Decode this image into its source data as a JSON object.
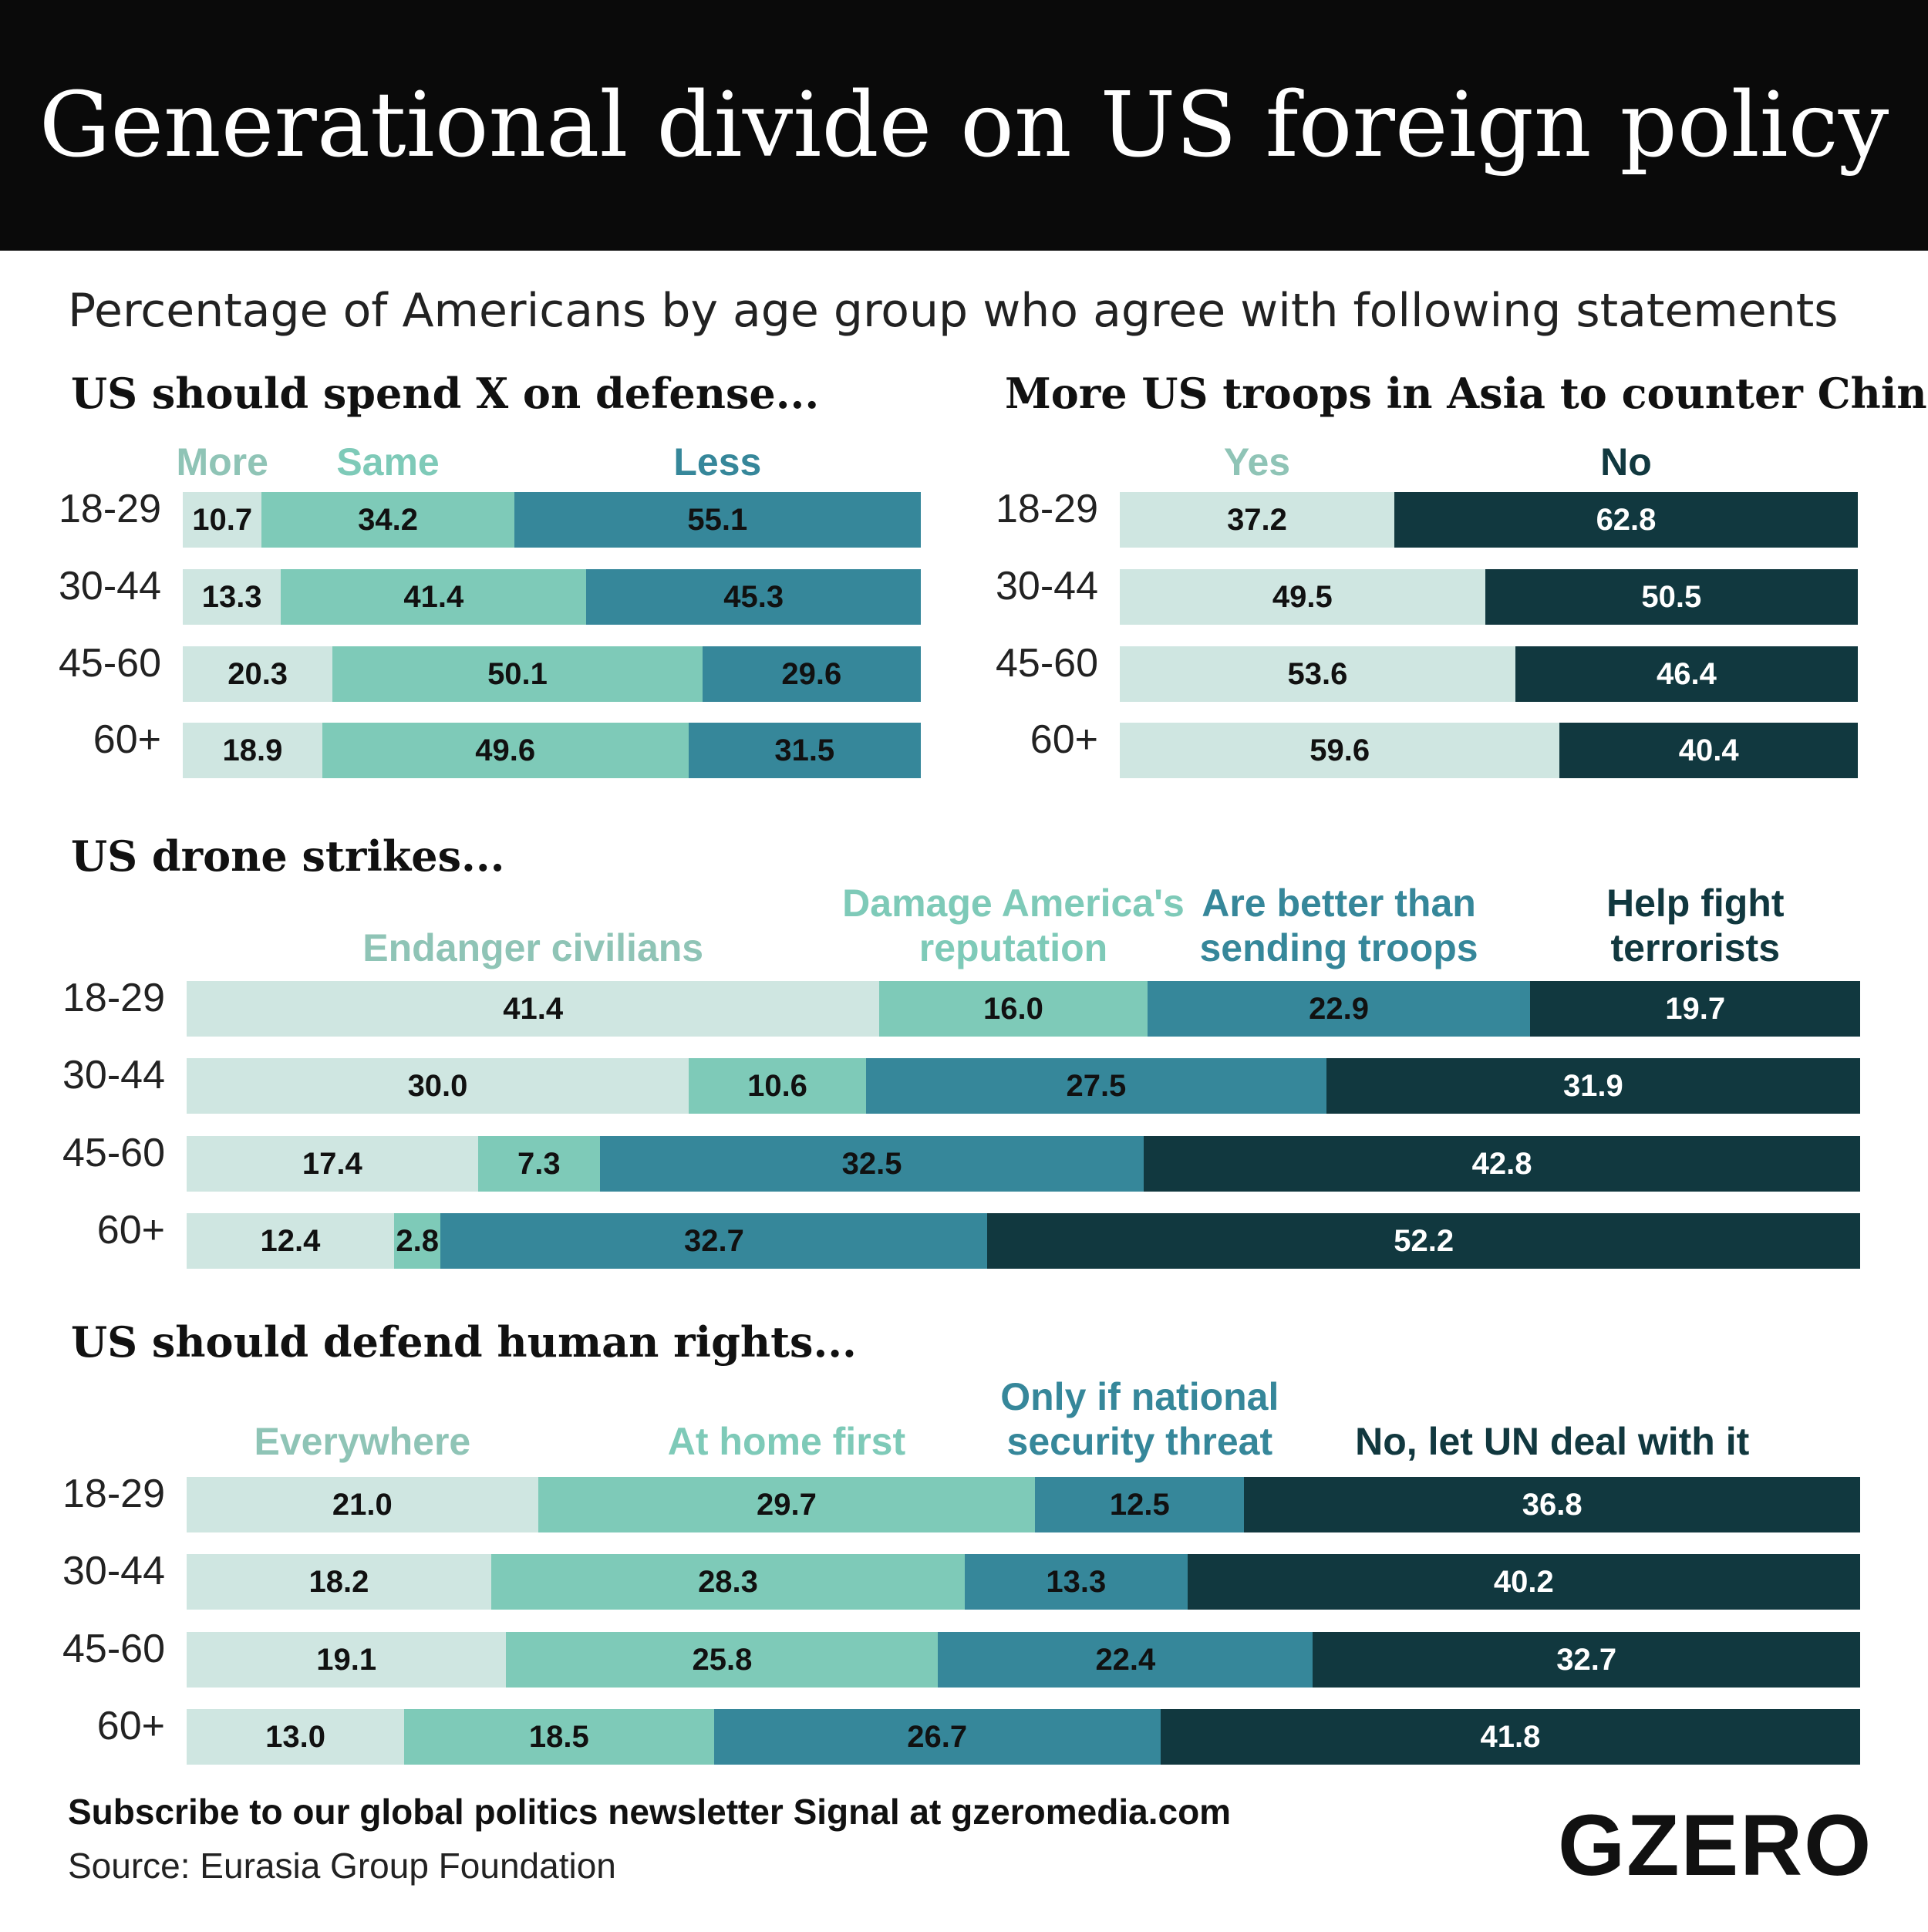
{
  "title": "Generational divide on US foreign policy",
  "subtitle": "Percentage of Americans by age group who agree with following statements",
  "footer": {
    "subscribe": "Subscribe to our global politics newsletter Signal at gzeromedia.com",
    "source": "Source: Eurasia Group Foundation",
    "logo": "GZERO"
  },
  "colors": {
    "c1": "#cfe6e1",
    "c2": "#7ecab8",
    "c3": "#36879a",
    "c4": "#11383f",
    "text_dark": "#111111",
    "text_light": "#ffffff"
  },
  "chart_data": [
    {
      "type": "bar",
      "stacked": true,
      "orientation": "horizontal",
      "title": "US should spend X on defense...",
      "categories": [
        "18-29",
        "30-44",
        "45-60",
        "60+"
      ],
      "series": [
        {
          "name": "More",
          "values": [
            10.7,
            13.3,
            20.3,
            18.9
          ]
        },
        {
          "name": "Same",
          "values": [
            34.2,
            41.4,
            50.1,
            49.6
          ]
        },
        {
          "name": "Less",
          "values": [
            55.1,
            45.3,
            29.6,
            31.5
          ]
        }
      ]
    },
    {
      "type": "bar",
      "stacked": true,
      "orientation": "horizontal",
      "title": "More US troops in Asia to counter China",
      "categories": [
        "18-29",
        "30-44",
        "45-60",
        "60+"
      ],
      "series": [
        {
          "name": "Yes",
          "values": [
            37.2,
            49.5,
            53.6,
            59.6
          ]
        },
        {
          "name": "No",
          "values": [
            62.8,
            50.5,
            46.4,
            40.4
          ]
        }
      ]
    },
    {
      "type": "bar",
      "stacked": true,
      "orientation": "horizontal",
      "title": "US drone strikes...",
      "categories": [
        "18-29",
        "30-44",
        "45-60",
        "60+"
      ],
      "series": [
        {
          "name": "Endanger civilians",
          "values": [
            41.4,
            30.0,
            17.4,
            12.4
          ]
        },
        {
          "name": "Damage America's\nreputation",
          "values": [
            16.0,
            10.6,
            7.3,
            2.8
          ]
        },
        {
          "name": "Are better than\nsending troops",
          "values": [
            22.9,
            27.5,
            32.5,
            32.7
          ]
        },
        {
          "name": "Help fight\nterrorists",
          "values": [
            19.7,
            31.9,
            42.8,
            52.2
          ]
        }
      ]
    },
    {
      "type": "bar",
      "stacked": true,
      "orientation": "horizontal",
      "title": "US should defend human rights...",
      "categories": [
        "18-29",
        "30-44",
        "45-60",
        "60+"
      ],
      "series": [
        {
          "name": "Everywhere",
          "values": [
            21.0,
            18.2,
            19.1,
            13.0
          ]
        },
        {
          "name": "At home first",
          "values": [
            29.7,
            28.3,
            25.8,
            18.5
          ]
        },
        {
          "name": "Only if national\nsecurity threat",
          "values": [
            12.5,
            13.3,
            22.4,
            26.7
          ]
        },
        {
          "name": "No, let UN deal with it",
          "values": [
            36.8,
            40.2,
            32.7,
            41.8
          ]
        }
      ]
    }
  ]
}
